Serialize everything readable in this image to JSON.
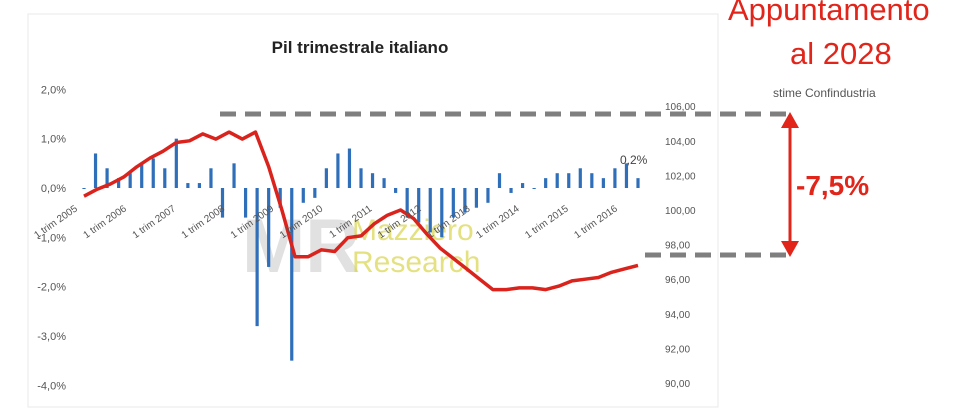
{
  "chart_data": {
    "type": "bar+line",
    "title": "Pil trimestrale italiano",
    "y_left": {
      "ticks": [
        "2,0%",
        "1,0%",
        "0,0%",
        "-1,0%",
        "-2,0%",
        "-3,0%",
        "-4,0%"
      ],
      "range": [
        -4.0,
        2.0
      ]
    },
    "y_right": {
      "ticks": [
        "106,00",
        "104,00",
        "102,00",
        "100,00",
        "98,00",
        "96,00",
        "94,00",
        "92,00",
        "90,00"
      ],
      "range": [
        90,
        106
      ]
    },
    "x_tick_labels": [
      "1 trim 2005",
      "1 trim 2006",
      "1 trim 2007",
      "1 trim 2008",
      "1 trim 2009",
      "1 trim 2010",
      "1 trim 2011",
      "1 trim 2012",
      "1 trim 2013",
      "1 trim 2014",
      "1 trim 2015",
      "1 trim 2016"
    ],
    "bars_quarterly_growth_pct": [
      0.0,
      0.7,
      0.4,
      0.2,
      0.3,
      0.5,
      0.6,
      0.4,
      1.0,
      0.1,
      0.1,
      0.4,
      -0.6,
      0.5,
      -0.6,
      -2.8,
      -1.6,
      -0.4,
      -3.5,
      -0.3,
      -0.2,
      0.4,
      0.7,
      0.8,
      0.4,
      0.3,
      0.2,
      -0.1,
      -0.6,
      -0.7,
      -0.9,
      -1.0,
      -0.6,
      -0.5,
      -0.4,
      -0.3,
      0.3,
      -0.1,
      0.1,
      0.0,
      0.2,
      0.3,
      0.3,
      0.4,
      0.3,
      0.2,
      0.4,
      0.5,
      0.2
    ],
    "line_index_2005": [
      100.8,
      101.2,
      101.5,
      101.9,
      102.5,
      103.0,
      103.4,
      103.9,
      104.0,
      104.4,
      104.1,
      104.5,
      104.1,
      104.5,
      102.5,
      100.0,
      97.3,
      97.3,
      97.7,
      97.6,
      98.4,
      98.5,
      99.2,
      99.7,
      100.0,
      99.5,
      98.6,
      97.8,
      97.2,
      96.6,
      96.0,
      95.4,
      95.4,
      95.5,
      95.5,
      95.4,
      95.6,
      95.9,
      96.0,
      96.1,
      96.4,
      96.6,
      96.8
    ],
    "bar_color": "#2f6fba",
    "line_color": "#d9231c",
    "last_bar_label": "0,2%",
    "watermark": "Mazziero Research"
  },
  "annotations": {
    "line1": "Appuntamento",
    "line2": "al 2028",
    "source": "stime Confindustria",
    "delta": "-7,5%",
    "accent_color": "#e1251b"
  }
}
